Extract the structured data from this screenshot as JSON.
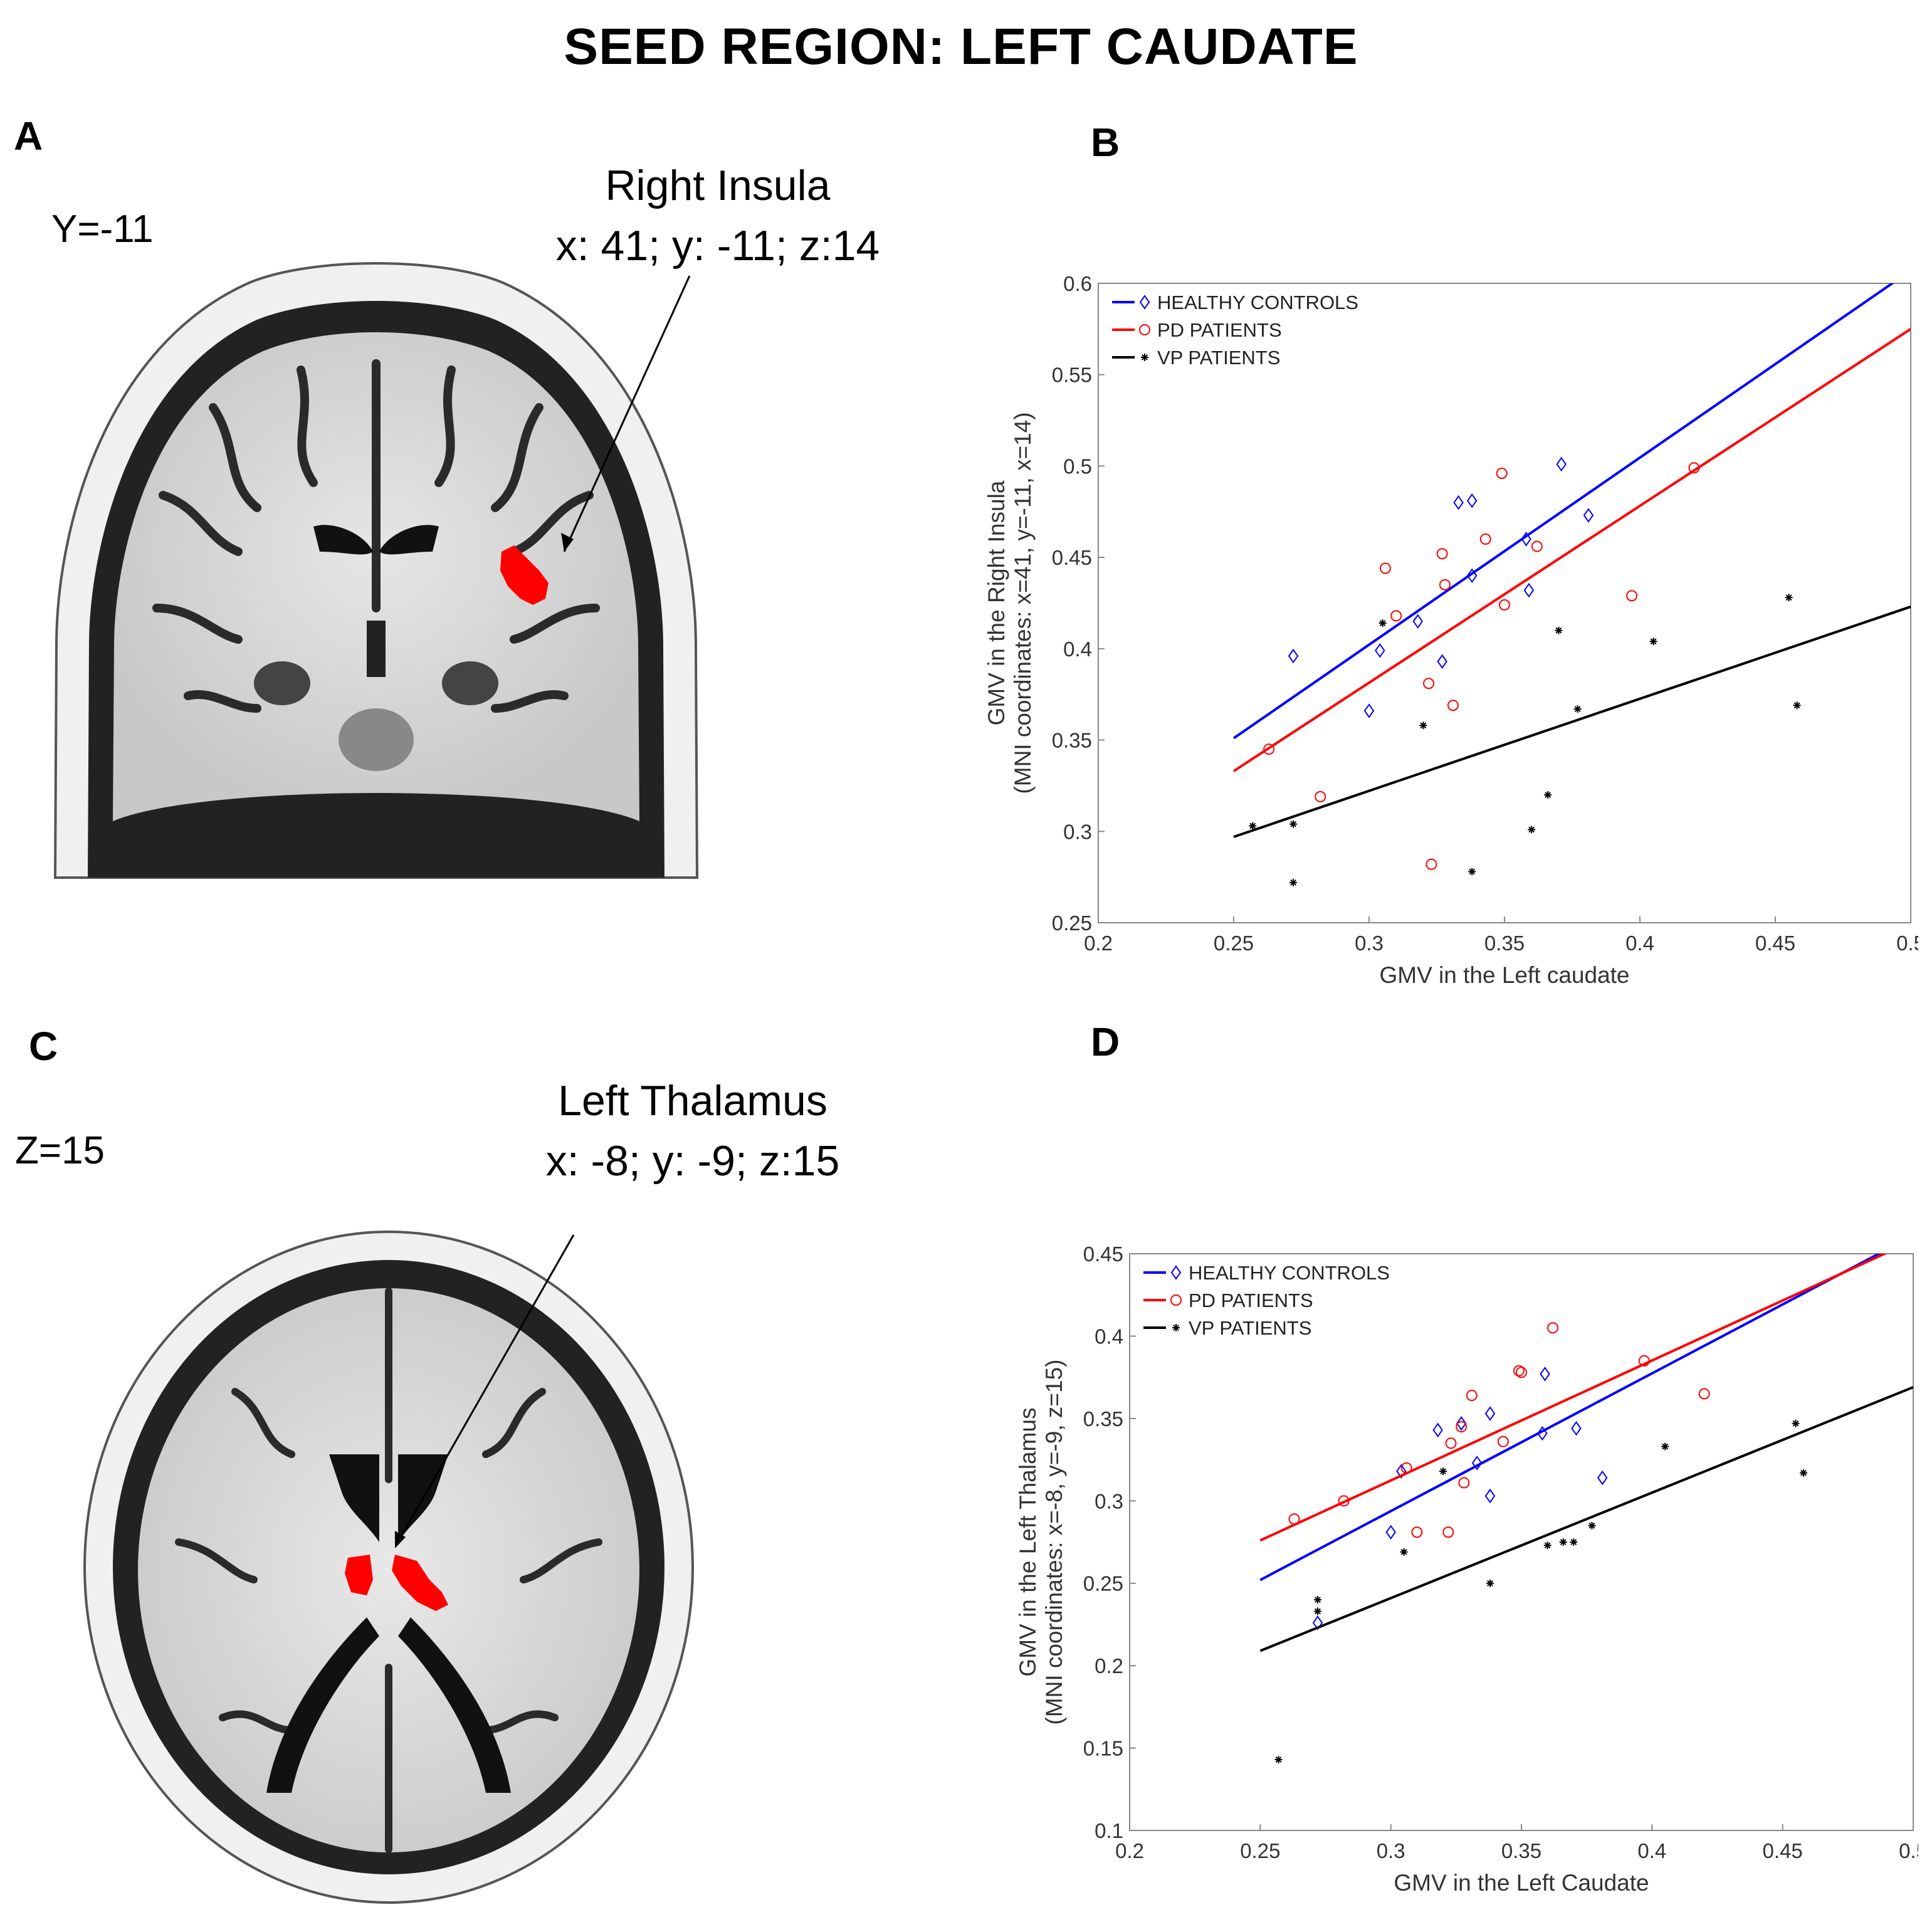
{
  "title": "SEED REGION: LEFT CAUDATE",
  "panels": {
    "a": {
      "letter": "A",
      "slice": "Y=-11",
      "region_name": "Right Insula",
      "region_coords": "x: 41; y: -11; z:14"
    },
    "b": {
      "letter": "B"
    },
    "c": {
      "letter": "C",
      "slice": "Z=15",
      "region_name": "Left Thalamus",
      "region_coords": "x: -8; y: -9; z:15"
    },
    "d": {
      "letter": "D"
    }
  },
  "colors": {
    "healthy": "#0000ff",
    "pd": "#ff0000",
    "vp": "#000000",
    "activation": "#ff0000"
  },
  "chart_data": [
    {
      "type": "scatter",
      "xlabel": "GMV in the Left caudate",
      "ylabel": "GMV in the Right Insula",
      "ylabel2": "(MNI coordinates: x=41, y=-11, x=14)",
      "xlim": [
        0.2,
        0.5
      ],
      "ylim": [
        0.25,
        0.6
      ],
      "xticks": [
        "0.2",
        "0.25",
        "0.3",
        "0.35",
        "0.4",
        "0.45",
        "0.5"
      ],
      "yticks": [
        "0.25",
        "0.3",
        "0.35",
        "0.4",
        "0.45",
        "0.5",
        "0.55",
        "0.6"
      ],
      "grid": false,
      "legend_position": "top-left",
      "series": [
        {
          "name": "HEALTHY CONTROLS",
          "marker": "diamond",
          "fit": [
            [
              0.25,
              0.351
            ],
            [
              0.5,
              0.607
            ]
          ],
          "points": [
            [
              0.272,
              0.396
            ],
            [
              0.3,
              0.366
            ],
            [
              0.304,
              0.399
            ],
            [
              0.318,
              0.415
            ],
            [
              0.327,
              0.393
            ],
            [
              0.333,
              0.48
            ],
            [
              0.338,
              0.481
            ],
            [
              0.338,
              0.44
            ],
            [
              0.358,
              0.46
            ],
            [
              0.359,
              0.432
            ],
            [
              0.371,
              0.501
            ],
            [
              0.381,
              0.473
            ]
          ]
        },
        {
          "name": "PD PATIENTS",
          "marker": "circle",
          "fit": [
            [
              0.25,
              0.333
            ],
            [
              0.5,
              0.575
            ]
          ],
          "points": [
            [
              0.263,
              0.345
            ],
            [
              0.282,
              0.319
            ],
            [
              0.306,
              0.444
            ],
            [
              0.31,
              0.418
            ],
            [
              0.322,
              0.381
            ],
            [
              0.323,
              0.282
            ],
            [
              0.327,
              0.452
            ],
            [
              0.328,
              0.435
            ],
            [
              0.331,
              0.369
            ],
            [
              0.343,
              0.46
            ],
            [
              0.349,
              0.496
            ],
            [
              0.35,
              0.424
            ],
            [
              0.362,
              0.456
            ],
            [
              0.397,
              0.429
            ],
            [
              0.42,
              0.499
            ]
          ]
        },
        {
          "name": "VP PATIENTS",
          "marker": "star",
          "fit": [
            [
              0.25,
              0.297
            ],
            [
              0.5,
              0.423
            ]
          ],
          "points": [
            [
              0.257,
              0.303
            ],
            [
              0.272,
              0.304
            ],
            [
              0.272,
              0.272
            ],
            [
              0.305,
              0.414
            ],
            [
              0.32,
              0.358
            ],
            [
              0.338,
              0.278
            ],
            [
              0.36,
              0.301
            ],
            [
              0.366,
              0.32
            ],
            [
              0.37,
              0.41
            ],
            [
              0.377,
              0.367
            ],
            [
              0.405,
              0.404
            ],
            [
              0.455,
              0.428
            ],
            [
              0.458,
              0.369
            ]
          ]
        }
      ]
    },
    {
      "type": "scatter",
      "xlabel": "GMV in the Left Caudate",
      "ylabel": "GMV in the Left Thalamus",
      "ylabel2": "(MNI coordinates: x=-8, y=-9, z=15)",
      "xlim": [
        0.2,
        0.5
      ],
      "ylim": [
        0.1,
        0.45
      ],
      "xticks": [
        "0.2",
        "0.25",
        "0.3",
        "0.35",
        "0.4",
        "0.45",
        "0.5"
      ],
      "yticks": [
        "0.1",
        "0.15",
        "0.2",
        "0.25",
        "0.3",
        "0.35",
        "0.4",
        "0.45"
      ],
      "grid": false,
      "legend_position": "top-left",
      "series": [
        {
          "name": "HEALTHY CONTROLS",
          "marker": "diamond",
          "fit": [
            [
              0.25,
              0.252
            ],
            [
              0.5,
              0.461
            ]
          ],
          "points": [
            [
              0.272,
              0.226
            ],
            [
              0.3,
              0.281
            ],
            [
              0.304,
              0.318
            ],
            [
              0.318,
              0.343
            ],
            [
              0.327,
              0.347
            ],
            [
              0.333,
              0.323
            ],
            [
              0.338,
              0.303
            ],
            [
              0.338,
              0.353
            ],
            [
              0.358,
              0.341
            ],
            [
              0.359,
              0.377
            ],
            [
              0.371,
              0.344
            ],
            [
              0.381,
              0.314
            ]
          ]
        },
        {
          "name": "PD PATIENTS",
          "marker": "circle",
          "fit": [
            [
              0.25,
              0.276
            ],
            [
              0.5,
              0.458
            ]
          ],
          "points": [
            [
              0.263,
              0.289
            ],
            [
              0.282,
              0.3
            ],
            [
              0.306,
              0.32
            ],
            [
              0.31,
              0.281
            ],
            [
              0.322,
              0.281
            ],
            [
              0.323,
              0.335
            ],
            [
              0.327,
              0.345
            ],
            [
              0.328,
              0.311
            ],
            [
              0.331,
              0.364
            ],
            [
              0.343,
              0.336
            ],
            [
              0.349,
              0.379
            ],
            [
              0.35,
              0.378
            ],
            [
              0.362,
              0.405
            ],
            [
              0.397,
              0.385
            ],
            [
              0.42,
              0.365
            ]
          ]
        },
        {
          "name": "VP PATIENTS",
          "marker": "star",
          "fit": [
            [
              0.25,
              0.209
            ],
            [
              0.5,
              0.369
            ]
          ],
          "points": [
            [
              0.257,
              0.143
            ],
            [
              0.272,
              0.24
            ],
            [
              0.272,
              0.233
            ],
            [
              0.305,
              0.269
            ],
            [
              0.32,
              0.318
            ],
            [
              0.338,
              0.25
            ],
            [
              0.36,
              0.273
            ],
            [
              0.366,
              0.275
            ],
            [
              0.37,
              0.275
            ],
            [
              0.377,
              0.285
            ],
            [
              0.405,
              0.333
            ],
            [
              0.455,
              0.347
            ],
            [
              0.458,
              0.317
            ]
          ]
        }
      ]
    }
  ]
}
